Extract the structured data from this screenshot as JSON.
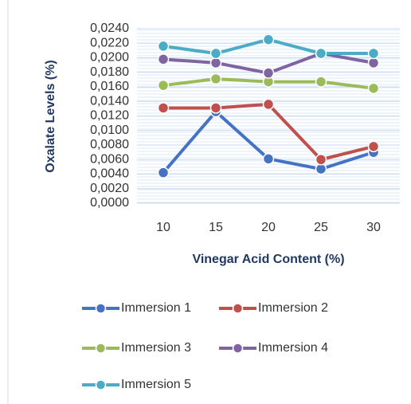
{
  "chart_data": {
    "type": "line",
    "x_label": "Vinegar Acid Content (%)",
    "y_label": "Oxalate Levels (%)",
    "categories": [
      "10",
      "15",
      "20",
      "25",
      "30"
    ],
    "series": [
      {
        "name": "Immersion 1",
        "color": "#4472c4",
        "values": [
          0.0042,
          0.0126,
          0.0061,
          0.0047,
          0.007
        ]
      },
      {
        "name": "Immersion 2",
        "color": "#c0504d",
        "values": [
          0.0131,
          0.0131,
          0.0136,
          0.006,
          0.0078
        ]
      },
      {
        "name": "Immersion 3",
        "color": "#9bbb59",
        "values": [
          0.0162,
          0.0171,
          0.0167,
          0.0167,
          0.0158
        ]
      },
      {
        "name": "Immersion 4",
        "color": "#8064a2",
        "values": [
          0.0198,
          0.0193,
          0.0179,
          0.0206,
          0.0193
        ]
      },
      {
        "name": "Immersion 5",
        "color": "#4bacc6",
        "values": [
          0.0216,
          0.0206,
          0.0225,
          0.0206,
          0.0206
        ]
      }
    ],
    "ylim": [
      0,
      0.024
    ],
    "yticks": [
      {
        "value": 0,
        "label": "0,0000"
      },
      {
        "value": 0.002,
        "label": "0,0020"
      },
      {
        "value": 0.004,
        "label": "0,0040"
      },
      {
        "value": 0.006,
        "label": "0,0060"
      },
      {
        "value": 0.008,
        "label": "0,0080"
      },
      {
        "value": 0.01,
        "label": "0,0100"
      },
      {
        "value": 0.012,
        "label": "0,0120"
      },
      {
        "value": 0.014,
        "label": "0,0140"
      },
      {
        "value": 0.016,
        "label": "0,0160"
      },
      {
        "value": 0.018,
        "label": "0,0180"
      },
      {
        "value": 0.02,
        "label": "0,0200"
      },
      {
        "value": 0.022,
        "label": "0,0220"
      },
      {
        "value": 0.024,
        "label": "0,0240"
      }
    ],
    "grid": true,
    "legend": "bottom"
  }
}
